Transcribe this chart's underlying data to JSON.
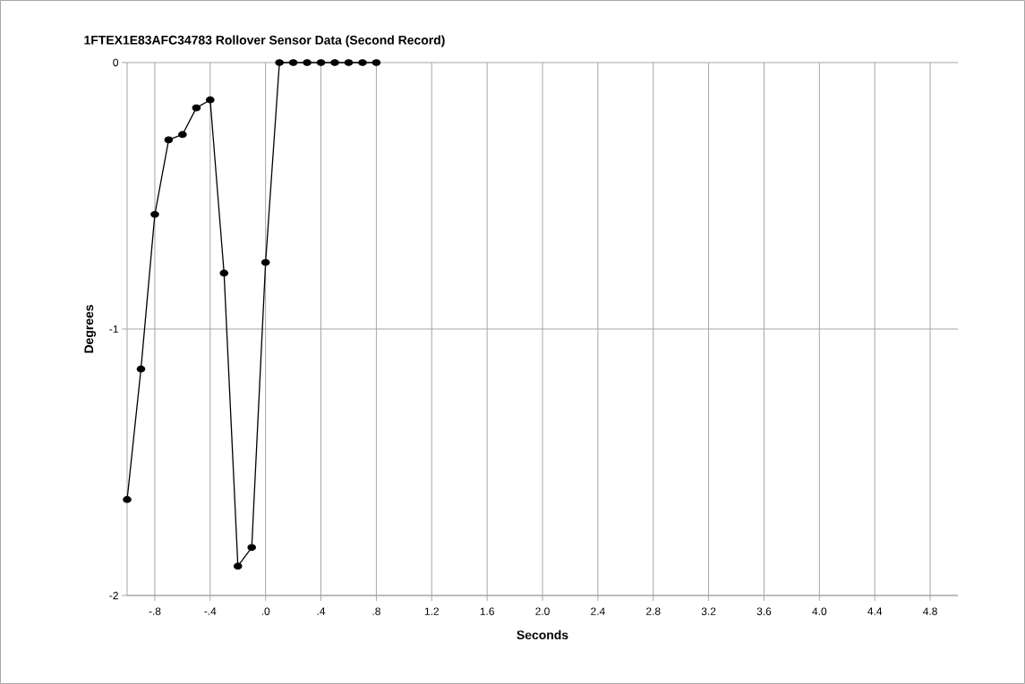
{
  "chart_data": {
    "type": "line",
    "title": "1FTEX1E83AFC34783  Rollover Sensor Data (Second Record)",
    "xlabel": "Seconds",
    "ylabel": "Degrees",
    "x": [
      -1.0,
      -0.9,
      -0.8,
      -0.7,
      -0.6,
      -0.5,
      -0.4,
      -0.3,
      -0.2,
      -0.1,
      0.0,
      0.1,
      0.2,
      0.3,
      0.4,
      0.5,
      0.6,
      0.7,
      0.8
    ],
    "series": [
      {
        "color": "#000000",
        "values": [
          -1.64,
          -1.15,
          -0.57,
          -0.29,
          -0.27,
          -0.17,
          -0.14,
          -0.79,
          -1.89,
          -1.82,
          -0.75,
          0,
          0,
          0,
          0,
          0,
          0,
          0,
          0
        ]
      }
    ],
    "xlim": [
      -1.0,
      5.0
    ],
    "ylim": [
      -2,
      0
    ],
    "xticks": [
      {
        "value": -0.8,
        "label": "-.8"
      },
      {
        "value": -0.4,
        "label": "-.4"
      },
      {
        "value": 0,
        "label": ".0"
      },
      {
        "value": 0.4,
        "label": ".4"
      },
      {
        "value": 0.8,
        "label": ".8"
      },
      1.2,
      1.6,
      {
        "value": 2.0,
        "label": "2.0"
      },
      2.4,
      2.8,
      3.2,
      3.6,
      {
        "value": 4.0,
        "label": "4.0"
      },
      4.4,
      4.8
    ],
    "yticks": [
      0,
      -1,
      -2
    ],
    "grid": true,
    "marker": "circle",
    "line_style": "solid"
  }
}
